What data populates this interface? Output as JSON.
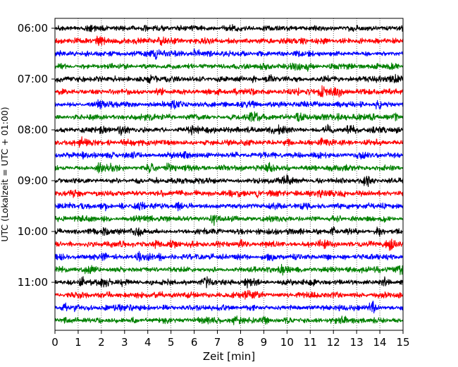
{
  "chart_data": {
    "type": "line",
    "title": "",
    "xlabel": "Zeit  [min]",
    "ylabel": "UTC (Lokalzeit = UTC + 01:00)",
    "xlim": [
      0,
      15
    ],
    "x_ticks": [
      "0",
      "1",
      "2",
      "3",
      "4",
      "5",
      "6",
      "7",
      "8",
      "9",
      "10",
      "11",
      "12",
      "13",
      "14",
      "15"
    ],
    "y_tick_labels": [
      "06:00",
      "07:00",
      "08:00",
      "09:00",
      "10:00",
      "11:00"
    ],
    "grid": "vertical dotted",
    "trace_interval_minutes": 15,
    "trace_colors": [
      "#000000",
      "#ff0000",
      "#0000ff",
      "#008000"
    ],
    "traces": [
      {
        "start": "06:00",
        "color": "#000000"
      },
      {
        "start": "06:15",
        "color": "#ff0000"
      },
      {
        "start": "06:30",
        "color": "#0000ff"
      },
      {
        "start": "06:45",
        "color": "#008000"
      },
      {
        "start": "07:00",
        "color": "#000000"
      },
      {
        "start": "07:15",
        "color": "#ff0000"
      },
      {
        "start": "07:30",
        "color": "#0000ff"
      },
      {
        "start": "07:45",
        "color": "#008000"
      },
      {
        "start": "08:00",
        "color": "#000000"
      },
      {
        "start": "08:15",
        "color": "#ff0000"
      },
      {
        "start": "08:30",
        "color": "#0000ff"
      },
      {
        "start": "08:45",
        "color": "#008000"
      },
      {
        "start": "09:00",
        "color": "#000000"
      },
      {
        "start": "09:15",
        "color": "#ff0000"
      },
      {
        "start": "09:30",
        "color": "#0000ff"
      },
      {
        "start": "09:45",
        "color": "#008000"
      },
      {
        "start": "10:00",
        "color": "#000000"
      },
      {
        "start": "10:15",
        "color": "#ff0000"
      },
      {
        "start": "10:30",
        "color": "#0000ff"
      },
      {
        "start": "10:45",
        "color": "#008000"
      },
      {
        "start": "11:00",
        "color": "#000000"
      },
      {
        "start": "11:15",
        "color": "#ff0000"
      },
      {
        "start": "11:30",
        "color": "#0000ff"
      },
      {
        "start": "11:45",
        "color": "#008000"
      }
    ]
  }
}
